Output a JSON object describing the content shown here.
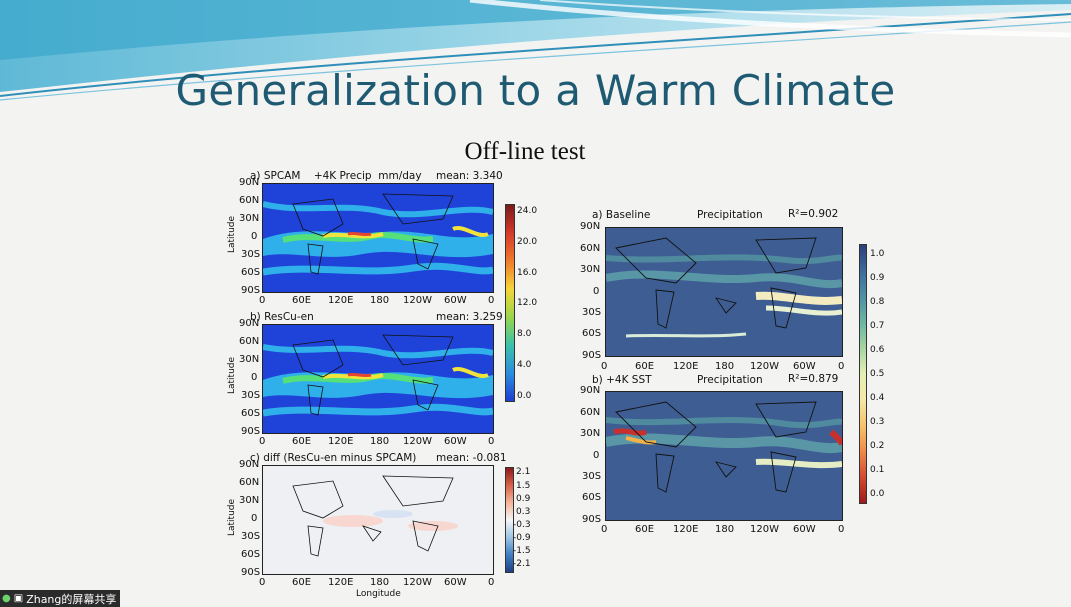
{
  "slide": {
    "title": "Generalization to a Warm Climate",
    "subtitle": "Off-line test"
  },
  "left_panels": [
    {
      "heading_a": "a) SPCAM",
      "heading_b": "+4K Precip",
      "heading_c": "mm/day",
      "mean": "mean: 3.340",
      "ylabel": "Latitude"
    },
    {
      "heading_a": "b) ResCu-en",
      "mean": "mean: 3.259",
      "ylabel": "Latitude"
    },
    {
      "heading_a": "c) diff (ResCu-en minus SPCAM)",
      "mean": "mean: -0.081",
      "ylabel": "Latitude",
      "xlabel": "Longitude"
    }
  ],
  "right_panels": [
    {
      "heading_a": "a) Baseline",
      "heading_b": "Precipitation",
      "r2": "R²=0.902"
    },
    {
      "heading_a": "b) +4K SST",
      "heading_b": "Precipitation",
      "r2": "R²=0.879"
    }
  ],
  "lat_ticks": [
    "90N",
    "60N",
    "30N",
    "0",
    "30S",
    "60S",
    "90S"
  ],
  "lon_ticks": [
    "0",
    "60E",
    "120E",
    "180",
    "120W",
    "60W",
    "0"
  ],
  "colorbars": {
    "precip": [
      "24.0",
      "20.0",
      "16.0",
      "12.0",
      "8.0",
      "4.0",
      "0.0"
    ],
    "diff": [
      "2.1",
      "1.5",
      "0.9",
      "0.3",
      "-0.3",
      "-0.9",
      "-1.5",
      "-2.1"
    ],
    "r2": [
      "1.0",
      "0.9",
      "0.8",
      "0.7",
      "0.6",
      "0.5",
      "0.4",
      "0.3",
      "0.2",
      "0.1",
      "0.0"
    ]
  },
  "taskbar": {
    "label": "Zhang的屏幕共享",
    "mic_icon": "mic-icon",
    "screen_icon": "screen-share-icon"
  }
}
